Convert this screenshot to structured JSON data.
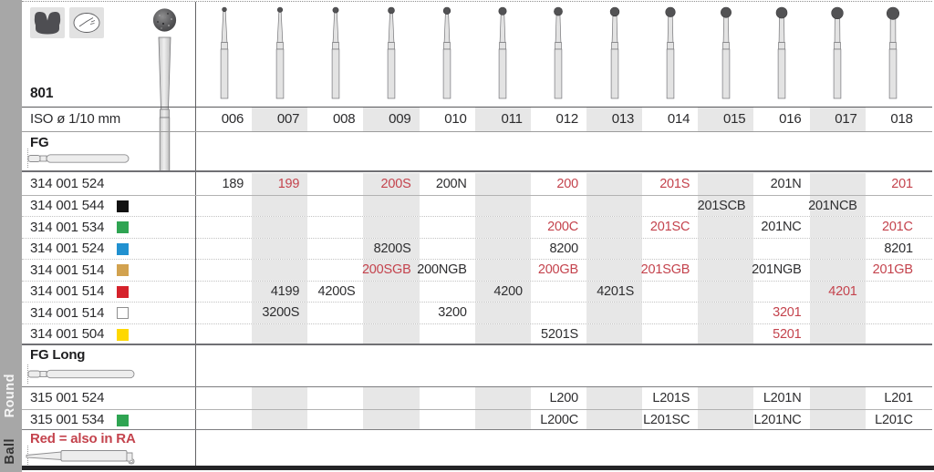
{
  "page": {
    "series": "801",
    "iso_label": "ISO ø 1/10 mm",
    "footnote": "Red = also in RA"
  },
  "sidebar": {
    "group_label": "Round",
    "shape_label": "Ball"
  },
  "icons": {
    "pictogram_1": "crown-prep-pictogram",
    "pictogram_2": "cavity-pictogram",
    "product_photo": "ball-bur-photo",
    "fg_shank": "fg-shank-icon",
    "fg_long_shank": "fg-long-shank-icon",
    "ra_shank": "ra-shank-icon"
  },
  "colors": {
    "red_text": "#c4434d",
    "shade": "#e7e7e7",
    "sidebar": "#a7a7a7",
    "ring_black": "#111111",
    "ring_green": "#2fa452",
    "ring_blue": "#2191d0",
    "ring_gold": "#d2a24f",
    "ring_red": "#d5222b",
    "ring_white": "#ffffff",
    "ring_yellow": "#fed800"
  },
  "sizes": [
    "006",
    "007",
    "008",
    "009",
    "010",
    "011",
    "012",
    "013",
    "014",
    "015",
    "016",
    "017",
    "018"
  ],
  "sections": [
    {
      "label": "FG",
      "rows": [
        {
          "code": "314 001 524",
          "ring": null,
          "cells": {
            "006": {
              "t": "189"
            },
            "007": {
              "t": "199",
              "r": true
            },
            "009": {
              "t": "200S",
              "r": true
            },
            "010": {
              "t": "200N"
            },
            "012": {
              "t": "200",
              "r": true
            },
            "014": {
              "t": "201S",
              "r": true
            },
            "016": {
              "t": "201N"
            },
            "018": {
              "t": "201",
              "r": true
            }
          }
        },
        {
          "code": "314 001 544",
          "ring": "black",
          "cells": {
            "015": {
              "t": "201SCB"
            },
            "017": {
              "t": "201NCB"
            }
          }
        },
        {
          "code": "314 001 534",
          "ring": "green",
          "cells": {
            "012": {
              "t": "200C",
              "r": true
            },
            "014": {
              "t": "201SC",
              "r": true
            },
            "016": {
              "t": "201NC"
            },
            "018": {
              "t": "201C",
              "r": true
            }
          }
        },
        {
          "code": "314 001 524",
          "ring": "blue",
          "cells": {
            "009": {
              "t": "8200S"
            },
            "012": {
              "t": "8200"
            },
            "018": {
              "t": "8201"
            }
          }
        },
        {
          "code": "314 001 514",
          "ring": "gold",
          "cells": {
            "009": {
              "t": "200SGB",
              "r": true
            },
            "010": {
              "t": "200NGB"
            },
            "012": {
              "t": "200GB",
              "r": true
            },
            "014": {
              "t": "201SGB",
              "r": true
            },
            "016": {
              "t": "201NGB"
            },
            "018": {
              "t": "201GB",
              "r": true
            }
          }
        },
        {
          "code": "314 001 514",
          "ring": "red",
          "cells": {
            "007": {
              "t": "4199"
            },
            "008": {
              "t": "4200S"
            },
            "011": {
              "t": "4200"
            },
            "013": {
              "t": "4201S"
            },
            "017": {
              "t": "4201",
              "r": true
            }
          }
        },
        {
          "code": "314 001 514",
          "ring": "white",
          "cells": {
            "007": {
              "t": "3200S"
            },
            "010": {
              "t": "3200"
            },
            "016": {
              "t": "3201",
              "r": true
            }
          }
        },
        {
          "code": "314 001 504",
          "ring": "yellow",
          "cells": {
            "012": {
              "t": "5201S"
            },
            "016": {
              "t": "5201",
              "r": true
            }
          }
        }
      ]
    },
    {
      "label": "FG Long",
      "rows": [
        {
          "code": "315 001 524",
          "ring": null,
          "cells": {
            "012": {
              "t": "L200"
            },
            "014": {
              "t": "L201S"
            },
            "016": {
              "t": "L201N"
            },
            "018": {
              "t": "L201"
            }
          }
        },
        {
          "code": "315 001 534",
          "ring": "green",
          "cells": {
            "012": {
              "t": "L200C"
            },
            "014": {
              "t": "L201SC"
            },
            "016": {
              "t": "L201NC"
            },
            "018": {
              "t": "L201C"
            }
          }
        }
      ]
    }
  ]
}
